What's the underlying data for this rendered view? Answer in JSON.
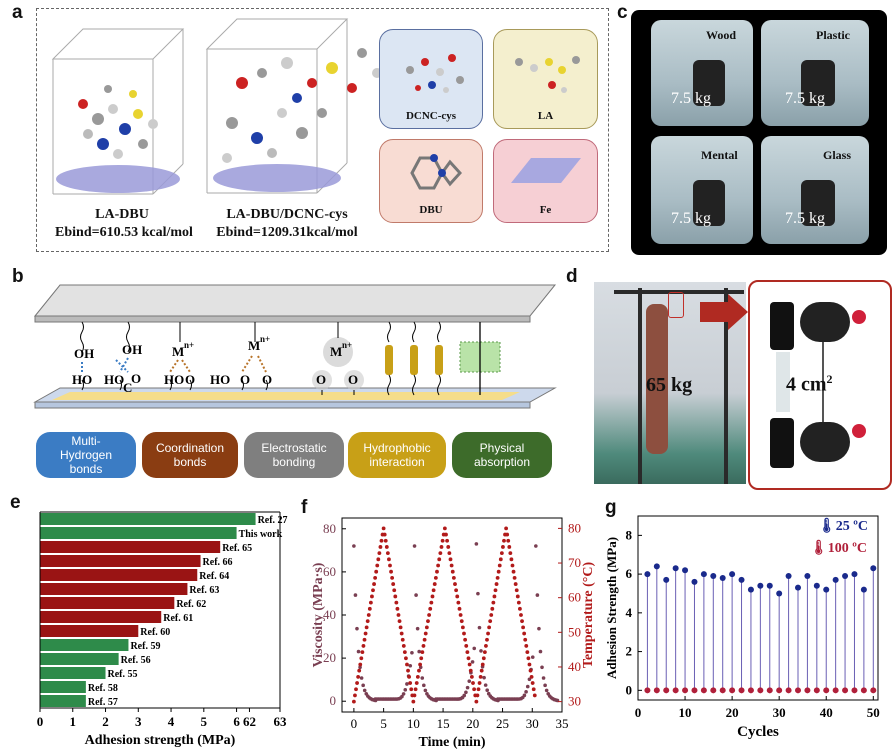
{
  "panels": {
    "a": "a",
    "b": "b",
    "c": "c",
    "d": "d",
    "e": "e",
    "f": "f",
    "g": "g"
  },
  "panel_a": {
    "left_name": "LA-DBU",
    "left_ebind": "Ebind=610.53 kcal/mol",
    "right_name": "LA-DBU/DCNC-cys",
    "right_ebind": "Ebind=1209.31kcal/mol",
    "components": [
      "DCNC-cys",
      "LA",
      "DBU",
      "Fe"
    ]
  },
  "panel_b": {
    "bonds": [
      {
        "label": "Multi-\nHydrogen\nbonds",
        "color": "#3b7cc4"
      },
      {
        "label": "Coordination\nbonds",
        "color": "#8a3d12"
      },
      {
        "label": "Electrostatic\nbonding",
        "color": "#7f7f7f"
      },
      {
        "label": "Hydrophobic\ninteraction",
        "color": "#c8a017"
      },
      {
        "label": "Physical\nabsorption",
        "color": "#3d6b2a"
      }
    ],
    "groups": [
      "OH",
      "HO",
      "OH",
      "HO",
      "C",
      "O",
      "M",
      "n+",
      "O",
      "C",
      "HO",
      "O"
    ]
  },
  "panel_c": {
    "substrates": [
      "Wood",
      "Plastic",
      "Mental",
      "Glass"
    ],
    "weight": "7.5 kg"
  },
  "panel_d": {
    "weight": "65 kg",
    "area": "4 cm",
    "area_sup": "2"
  },
  "chart_data": [
    {
      "panel": "e",
      "type": "bar",
      "orientation": "horizontal",
      "xlabel": "Adhesion strength (MPa)",
      "xticks": [
        "0",
        "1",
        "2",
        "3",
        "4",
        "5",
        "6",
        "62",
        "63"
      ],
      "categories": [
        "Ref. 27",
        "This work",
        "Ref. 65",
        "Ref. 66",
        "Ref. 64",
        "Ref. 63",
        "Ref. 62",
        "Ref. 61",
        "Ref. 60",
        "Ref. 59",
        "Ref. 56",
        "Ref. 55",
        "Ref. 58",
        "Ref. 57"
      ],
      "values": [
        62.2,
        6.0,
        5.5,
        4.9,
        4.8,
        4.5,
        4.1,
        3.7,
        3.0,
        2.7,
        2.4,
        2.0,
        1.4,
        1.4
      ],
      "colors": [
        "green",
        "green",
        "red",
        "red",
        "red",
        "red",
        "red",
        "red",
        "red",
        "green",
        "green",
        "green",
        "green",
        "green"
      ],
      "axis_break": [
        6.3,
        61.9
      ]
    },
    {
      "panel": "f",
      "type": "line",
      "xlabel": "Time (min)",
      "ylabel": "Viscosity (MPa·s)",
      "y2label": "Temperature (°C)",
      "xticks": [
        "0",
        "5",
        "10",
        "15",
        "20",
        "25",
        "30",
        "35"
      ],
      "yticks": [
        "0",
        "20",
        "40",
        "60",
        "80"
      ],
      "y2ticks": [
        "30",
        "40",
        "50",
        "60",
        "70",
        "80"
      ],
      "xlim": [
        -2,
        35
      ],
      "ylim": [
        -5,
        85
      ],
      "y2lim": [
        27,
        83
      ],
      "series": [
        {
          "name": "Temperature",
          "axis": "right",
          "x": [
            0,
            5,
            10,
            15.3,
            20.6,
            25.6,
            30.6
          ],
          "y": [
            30,
            80,
            30,
            80,
            30,
            80,
            30
          ]
        },
        {
          "name": "Viscosity",
          "axis": "left",
          "peaks": [
            0,
            10.2,
            20.6,
            30.6
          ],
          "peak_values": [
            72,
            72,
            73,
            72
          ]
        }
      ]
    },
    {
      "panel": "g",
      "type": "scatter",
      "xlabel": "Cycles",
      "ylabel": "Adhesion Strength (MPa)",
      "xticks": [
        "0",
        "10",
        "20",
        "30",
        "40",
        "50"
      ],
      "yticks": [
        "0",
        "2",
        "4",
        "6",
        "8"
      ],
      "xlim": [
        0,
        51
      ],
      "ylim": [
        -0.5,
        9
      ],
      "series": [
        {
          "name": "25 °C",
          "color": "#1a2a8c",
          "x": [
            2,
            4,
            6,
            8,
            10,
            12,
            14,
            16,
            18,
            20,
            22,
            24,
            26,
            28,
            30,
            32,
            34,
            36,
            38,
            40,
            42,
            44,
            46,
            48,
            50
          ],
          "values": [
            6.0,
            6.4,
            5.7,
            6.3,
            6.2,
            5.6,
            6.0,
            5.9,
            5.8,
            6.0,
            5.7,
            5.2,
            5.4,
            5.4,
            5.0,
            5.9,
            5.3,
            5.9,
            5.4,
            5.2,
            5.7,
            5.9,
            6.0,
            5.2,
            6.3
          ]
        },
        {
          "name": "100 °C",
          "color": "#b0203a",
          "x": [
            2,
            4,
            6,
            8,
            10,
            12,
            14,
            16,
            18,
            20,
            22,
            24,
            26,
            28,
            30,
            32,
            34,
            36,
            38,
            40,
            42,
            44,
            46,
            48,
            50
          ],
          "values": [
            0,
            0,
            0,
            0,
            0,
            0,
            0,
            0,
            0,
            0,
            0,
            0,
            0,
            0,
            0,
            0,
            0,
            0,
            0,
            0,
            0,
            0,
            0,
            0,
            0
          ]
        }
      ],
      "legend": [
        "25 ºC",
        "100 ºC"
      ]
    }
  ]
}
